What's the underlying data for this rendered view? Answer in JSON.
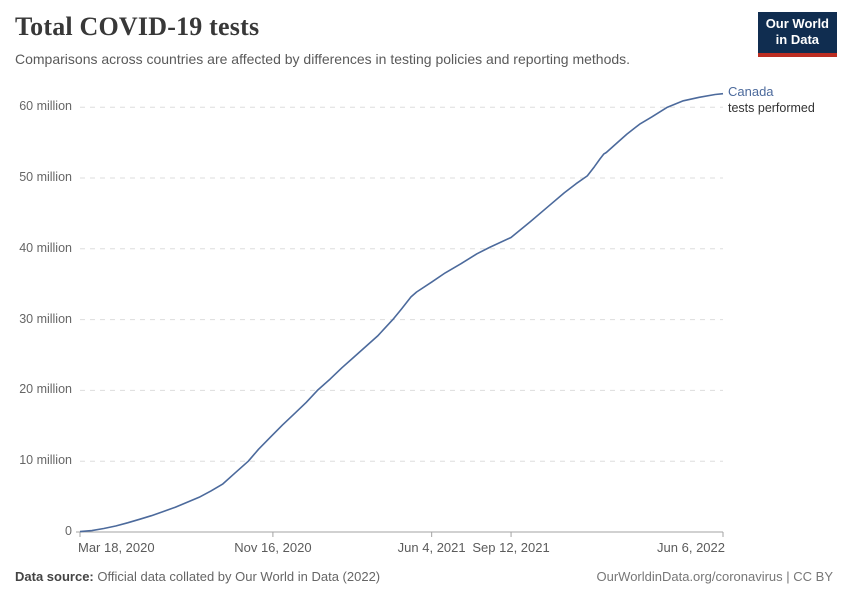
{
  "header": {
    "title": "Total COVID-19 tests",
    "subtitle": "Comparisons across countries are affected by differences in testing policies and reporting methods."
  },
  "logo": {
    "line1": "Our World",
    "line2": "in Data"
  },
  "series_label": {
    "name": "Canada",
    "sublabel": "tests performed"
  },
  "footer": {
    "source_label": "Data source:",
    "source_text": " Official data collated by Our World in Data (2022)",
    "right_text": "OurWorldinData.org/coronavirus | CC BY"
  },
  "colors": {
    "line": "#4c6a9c",
    "grid": "#dddddd",
    "axis": "#a3a3a3",
    "logo_bg": "#102d50",
    "logo_stripe": "#bc2d22"
  },
  "chart_data": {
    "type": "line",
    "title": "Total COVID-19 tests",
    "xlabel": "date",
    "ylabel": "tests performed",
    "x_unit": "days since 2020-03-18",
    "xlim_days": [
      0,
      810
    ],
    "ylim_millions": [
      0,
      62
    ],
    "grid": "horizontal-dashed",
    "legend_position": "end-of-line",
    "y_ticks": [
      {
        "label": "0",
        "value": 0
      },
      {
        "label": "10 million",
        "value": 10
      },
      {
        "label": "20 million",
        "value": 20
      },
      {
        "label": "30 million",
        "value": 30
      },
      {
        "label": "40 million",
        "value": 40
      },
      {
        "label": "50 million",
        "value": 50
      },
      {
        "label": "60 million",
        "value": 60
      }
    ],
    "x_ticks": [
      {
        "label": "Mar 18, 2020",
        "day": 0,
        "align": "left"
      },
      {
        "label": "Nov 16, 2020",
        "day": 243,
        "align": "center"
      },
      {
        "label": "Jun 4, 2021",
        "day": 443,
        "align": "center"
      },
      {
        "label": "Sep 12, 2021",
        "day": 543,
        "align": "center"
      },
      {
        "label": "Jun 6, 2022",
        "day": 810,
        "align": "right"
      }
    ],
    "series": [
      {
        "name": "Canada",
        "units": "million tests",
        "points": [
          [
            0,
            0.05
          ],
          [
            15,
            0.2
          ],
          [
            30,
            0.5
          ],
          [
            45,
            0.85
          ],
          [
            60,
            1.3
          ],
          [
            75,
            1.8
          ],
          [
            90,
            2.3
          ],
          [
            105,
            2.9
          ],
          [
            120,
            3.5
          ],
          [
            135,
            4.2
          ],
          [
            150,
            4.9
          ],
          [
            165,
            5.8
          ],
          [
            180,
            6.8
          ],
          [
            195,
            8.3
          ],
          [
            212,
            10
          ],
          [
            225,
            11.7
          ],
          [
            240,
            13.4
          ],
          [
            255,
            15.1
          ],
          [
            270,
            16.7
          ],
          [
            285,
            18.3
          ],
          [
            299,
            20
          ],
          [
            315,
            21.6
          ],
          [
            330,
            23.2
          ],
          [
            345,
            24.7
          ],
          [
            360,
            26.2
          ],
          [
            375,
            27.7
          ],
          [
            394,
            30
          ],
          [
            405,
            31.5
          ],
          [
            417,
            33.2
          ],
          [
            424,
            33.9
          ],
          [
            443,
            35.3
          ],
          [
            460,
            36.6
          ],
          [
            480,
            37.9
          ],
          [
            500,
            39.3
          ],
          [
            516,
            40.2
          ],
          [
            543,
            41.6
          ],
          [
            567,
            43.8
          ],
          [
            590,
            46
          ],
          [
            610,
            47.9
          ],
          [
            625,
            49.2
          ],
          [
            639,
            50.3
          ],
          [
            648,
            51.6
          ],
          [
            655,
            52.7
          ],
          [
            660,
            53.4
          ],
          [
            663,
            53.6
          ],
          [
            675,
            54.8
          ],
          [
            689,
            56.2
          ],
          [
            705,
            57.6
          ],
          [
            720,
            58.6
          ],
          [
            740,
            60
          ],
          [
            760,
            60.9
          ],
          [
            780,
            61.4
          ],
          [
            800,
            61.8
          ],
          [
            810,
            61.9
          ]
        ]
      }
    ]
  }
}
